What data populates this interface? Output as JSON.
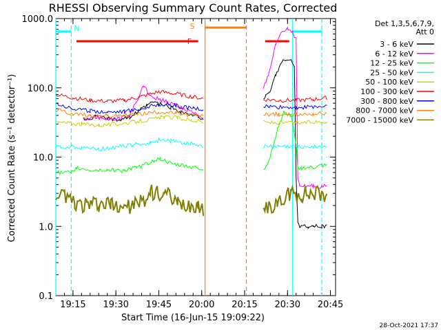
{
  "chart_data": {
    "type": "line",
    "title": "RHESSI Observing Summary Count Rates, Corrected",
    "xlabel": "Start Time (16-Jun-15 19:09:22)",
    "ylabel": "Corrected Count Rate (s⁻¹ detector⁻¹)",
    "yscale": "log",
    "ylim": [
      0.1,
      1000
    ],
    "xlim_minutes": [
      19.15,
      20.78
    ],
    "x_ticks": [
      {
        "label": "19:15",
        "t": 19.25
      },
      {
        "label": "19:30",
        "t": 19.5
      },
      {
        "label": "19:45",
        "t": 19.75
      },
      {
        "label": "20:00",
        "t": 20.0
      },
      {
        "label": "20:15",
        "t": 20.25
      },
      {
        "label": "20:30",
        "t": 20.5
      },
      {
        "label": "20:45",
        "t": 20.75
      }
    ],
    "y_ticks": [
      {
        "label": "0.1",
        "v": 0.1
      },
      {
        "label": "1.0",
        "v": 1
      },
      {
        "label": "10.0",
        "v": 10
      },
      {
        "label": "100.0",
        "v": 100
      },
      {
        "label": "1000.0",
        "v": 1000
      }
    ],
    "legend_header": [
      "Det 1,3,5,6,7,9,",
      "Att 0"
    ],
    "series": [
      {
        "name": "3 - 6 keV",
        "color": "#000000",
        "x": [
          19.15,
          19.27,
          19.31,
          19.38,
          19.45,
          19.52,
          19.58,
          19.63,
          19.68,
          19.72,
          19.76,
          19.82,
          19.88,
          19.94,
          19.98,
          20.01,
          20.02,
          20.36,
          20.39,
          20.43,
          20.46,
          20.49,
          20.52,
          20.54,
          20.55,
          20.56,
          20.57,
          20.58,
          20.6,
          20.62,
          20.65,
          20.7,
          20.73
        ],
        "y": [
          null,
          null,
          35,
          38,
          36,
          35,
          38,
          45,
          55,
          62,
          58,
          52,
          45,
          40,
          38,
          36,
          null,
          70,
          80,
          150,
          220,
          260,
          250,
          200,
          5,
          1.2,
          1.0,
          1.0,
          1.0,
          1.0,
          1.0,
          1.0,
          1.0
        ]
      },
      {
        "name": "6 - 12 keV",
        "color": "#ff00ff",
        "x": [
          19.15,
          19.27,
          19.31,
          19.38,
          19.45,
          19.52,
          19.58,
          19.63,
          19.66,
          19.7,
          19.74,
          19.8,
          19.88,
          19.94,
          19.98,
          20.01,
          20.02,
          20.36,
          20.39,
          20.43,
          20.46,
          20.5,
          20.53,
          20.55,
          20.56,
          20.57,
          20.6,
          20.65,
          20.7,
          20.73
        ],
        "y": [
          null,
          null,
          35,
          38,
          36,
          36,
          40,
          70,
          110,
          80,
          70,
          62,
          52,
          45,
          40,
          38,
          null,
          100,
          150,
          400,
          620,
          720,
          650,
          500,
          5,
          3.8,
          3.8,
          3.8,
          3.8,
          3.8
        ]
      },
      {
        "name": "12 - 25 keV",
        "color": "#00ff00",
        "x": [
          19.15,
          19.26,
          19.27,
          19.35,
          19.45,
          19.55,
          19.62,
          19.68,
          19.72,
          19.76,
          19.82,
          19.9,
          19.98,
          20.01,
          20.02,
          20.36,
          20.4,
          20.44,
          20.48,
          20.52,
          20.55,
          20.56,
          20.58,
          20.65,
          20.7,
          20.73
        ],
        "y": [
          6,
          6,
          7,
          6.5,
          6.5,
          6.5,
          7,
          8,
          9,
          9.5,
          8,
          7.5,
          7,
          6.5,
          null,
          6.5,
          10,
          25,
          45,
          40,
          15,
          7,
          7,
          7,
          7.5,
          7.5
        ]
      },
      {
        "name": "25 - 50 keV",
        "color": "#00ffff",
        "x": [
          19.15,
          19.3,
          19.4,
          19.5,
          19.6,
          19.7,
          19.76,
          19.82,
          19.9,
          19.98,
          20.01,
          20.02,
          20.36,
          20.45,
          20.55,
          20.65,
          20.73
        ],
        "y": [
          14,
          14,
          13,
          14,
          15,
          16,
          18,
          17,
          16,
          15,
          14,
          null,
          14,
          14,
          14,
          14,
          14
        ]
      },
      {
        "name": "50 - 100 keV",
        "color": "#cccc00",
        "x": [
          19.15,
          19.3,
          19.4,
          19.5,
          19.6,
          19.7,
          19.78,
          19.86,
          19.94,
          20.01,
          20.02,
          20.36,
          20.45,
          20.55,
          20.65,
          20.73
        ],
        "y": [
          32,
          30,
          29,
          30,
          32,
          35,
          38,
          37,
          34,
          32,
          null,
          32,
          31,
          31,
          32,
          33
        ]
      },
      {
        "name": "100 - 300 keV",
        "color": "#ff0000",
        "x": [
          19.15,
          19.25,
          19.35,
          19.45,
          19.55,
          19.65,
          19.75,
          19.85,
          19.95,
          20.01,
          20.02,
          20.36,
          20.45,
          20.55,
          20.65,
          20.73
        ],
        "y": [
          80,
          72,
          66,
          64,
          66,
          75,
          88,
          82,
          74,
          70,
          null,
          68,
          66,
          66,
          68,
          72
        ]
      },
      {
        "name": "300 - 800 keV",
        "color": "#0000ff",
        "x": [
          19.15,
          19.25,
          19.35,
          19.45,
          19.55,
          19.65,
          19.75,
          19.85,
          19.95,
          20.01,
          20.02,
          20.36,
          20.45,
          20.55,
          20.65,
          20.73
        ],
        "y": [
          60,
          50,
          46,
          45,
          46,
          50,
          58,
          55,
          50,
          48,
          null,
          54,
          52,
          52,
          53,
          54
        ]
      },
      {
        "name": "800 - 7000 keV",
        "color": "#ff8000",
        "x": [
          19.15,
          19.25,
          19.35,
          19.45,
          19.55,
          19.65,
          19.75,
          19.85,
          19.95,
          20.01,
          20.02,
          20.36,
          20.45,
          20.55,
          20.65,
          20.73
        ],
        "y": [
          48,
          42,
          40,
          39,
          40,
          42,
          45,
          43,
          40,
          39,
          null,
          42,
          41,
          41,
          42,
          43
        ]
      },
      {
        "name": "7000 - 15000 keV",
        "color": "#808000",
        "x": [
          19.15,
          19.2,
          19.26,
          19.33,
          19.4,
          19.47,
          19.55,
          19.62,
          19.7,
          19.78,
          19.86,
          19.94,
          19.98,
          20.01,
          20.02,
          20.36,
          20.44,
          20.52,
          20.58,
          20.65,
          20.7,
          20.73
        ],
        "y": [
          2,
          3,
          2,
          2,
          2,
          2,
          2,
          2,
          3,
          3,
          2,
          2,
          2,
          1.5,
          null,
          2,
          2,
          3,
          3,
          3,
          3,
          3
        ]
      }
    ],
    "annotations": [
      {
        "label": "N",
        "color": "#00ffff",
        "t_start": 19.15,
        "t_end": 19.24,
        "vlines": [
          19.15,
          19.24,
          20.53,
          20.7
        ],
        "bar_value": 650
      },
      {
        "label": "F",
        "color": "#ff0000",
        "t_start": 19.27,
        "t_end": 19.98,
        "vlines": [],
        "bar_value": 470
      },
      {
        "label": "S",
        "color": "#ff8000",
        "t_start": 20.02,
        "t_end": 20.26,
        "vlines": [
          20.02,
          20.26
        ],
        "bar_value": 740
      }
    ],
    "extra_red_bar": {
      "t_start": 20.37,
      "t_end": 20.51,
      "bar_value": 470
    },
    "footer": "28-Oct-2021 17:37"
  }
}
